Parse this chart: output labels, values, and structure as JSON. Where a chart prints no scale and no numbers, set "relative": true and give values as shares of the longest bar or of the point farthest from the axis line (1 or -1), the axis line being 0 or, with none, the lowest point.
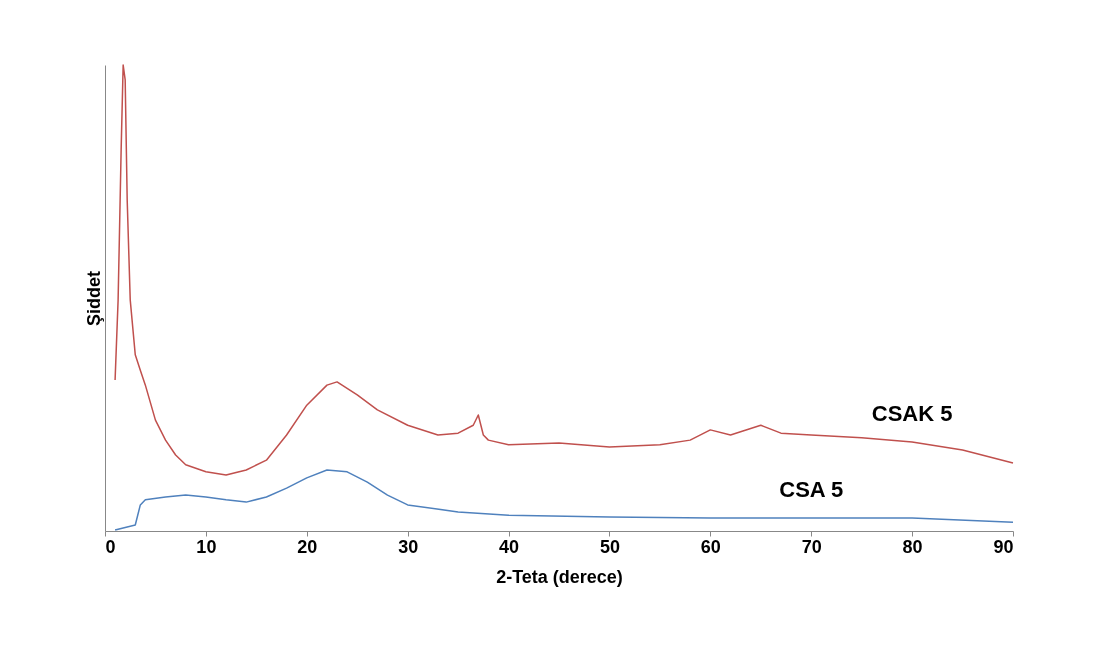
{
  "chart_data": {
    "type": "line",
    "xlabel": "2-Teta (derece)",
    "ylabel": "Şiddet",
    "relative": true,
    "xlim": [
      0,
      90
    ],
    "xticks": [
      0,
      10,
      20,
      30,
      40,
      50,
      60,
      70,
      80,
      90
    ],
    "grid": false,
    "legend": false,
    "marker": "none",
    "line_style": "solid",
    "series": [
      {
        "name": "CSAK 5",
        "color": "#c0504d",
        "x": [
          1.0,
          1.3,
          1.6,
          1.8,
          2.0,
          2.2,
          2.5,
          3.0,
          3.5,
          4.0,
          5.0,
          6.0,
          7.0,
          8.0,
          10.0,
          12.0,
          14.0,
          16.0,
          18.0,
          20.0,
          22.0,
          23.0,
          25.0,
          27.0,
          30.0,
          33.0,
          35.0,
          36.5,
          37.0,
          37.5,
          38.0,
          40.0,
          45.0,
          50.0,
          55.0,
          58.0,
          60.0,
          62.0,
          65.0,
          67.0,
          70.0,
          75.0,
          80.0,
          85.0,
          90.0
        ],
        "values": [
          0.324,
          0.496,
          0.818,
          1,
          0.968,
          0.71,
          0.496,
          0.378,
          0.345,
          0.313,
          0.238,
          0.195,
          0.163,
          0.142,
          0.127,
          0.12,
          0.131,
          0.152,
          0.206,
          0.27,
          0.313,
          0.32,
          0.292,
          0.26,
          0.227,
          0.206,
          0.21,
          0.227,
          0.249,
          0.206,
          0.195,
          0.185,
          0.189,
          0.18,
          0.185,
          0.195,
          0.217,
          0.206,
          0.227,
          0.21,
          0.206,
          0.2,
          0.191,
          0.174,
          0.146
        ]
      },
      {
        "name": "CSA 5",
        "color": "#4f81bd",
        "x": [
          1.0,
          3.0,
          3.5,
          4.0,
          6.0,
          8.0,
          10.0,
          12.0,
          14.0,
          16.0,
          18.0,
          20.0,
          22.0,
          24.0,
          26.0,
          28.0,
          30.0,
          35.0,
          40.0,
          50.0,
          60.0,
          70.0,
          80.0,
          90.0
        ],
        "values": [
          0.002,
          0.013,
          0.056,
          0.067,
          0.073,
          0.077,
          0.073,
          0.067,
          0.062,
          0.073,
          0.092,
          0.114,
          0.131,
          0.127,
          0.105,
          0.077,
          0.056,
          0.041,
          0.034,
          0.03,
          0.028,
          0.028,
          0.028,
          0.019
        ]
      }
    ]
  }
}
